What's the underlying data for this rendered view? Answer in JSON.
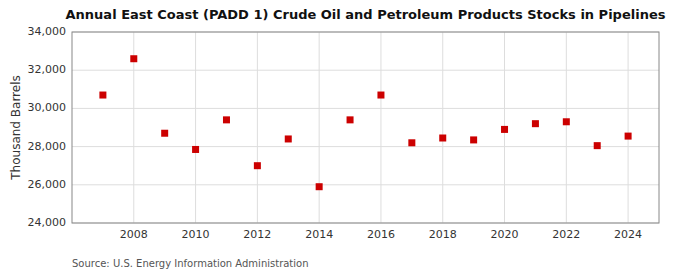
{
  "chart_data": {
    "type": "scatter",
    "title": "Annual East Coast (PADD 1) Crude Oil and Petroleum Products Stocks in Pipelines",
    "ylabel": "Thousand Barrels",
    "annotation": "Source: U.S. Energy Information Administration",
    "x": [
      2007,
      2008,
      2009,
      2010,
      2011,
      2012,
      2013,
      2014,
      2015,
      2016,
      2017,
      2018,
      2019,
      2020,
      2021,
      2022,
      2023,
      2024
    ],
    "values": [
      30700,
      32600,
      28700,
      27850,
      29400,
      27000,
      28400,
      25900,
      29400,
      30700,
      28200,
      28450,
      28350,
      28900,
      29200,
      29300,
      28050,
      28550
    ],
    "color": "#cc0000",
    "marker": "square",
    "xlim": [
      2006,
      2025
    ],
    "xticks": [
      2008,
      2010,
      2012,
      2014,
      2016,
      2018,
      2020,
      2022,
      2024
    ],
    "ylim": [
      24000,
      34000
    ],
    "yticks": [
      {
        "value": 24000,
        "label": "24,000"
      },
      {
        "value": 26000,
        "label": "26,000"
      },
      {
        "value": 28000,
        "label": "28,000"
      },
      {
        "value": 30000,
        "label": "30,000"
      },
      {
        "value": 32000,
        "label": "32,000"
      },
      {
        "value": 34000,
        "label": "34,000"
      }
    ],
    "grid": true
  }
}
